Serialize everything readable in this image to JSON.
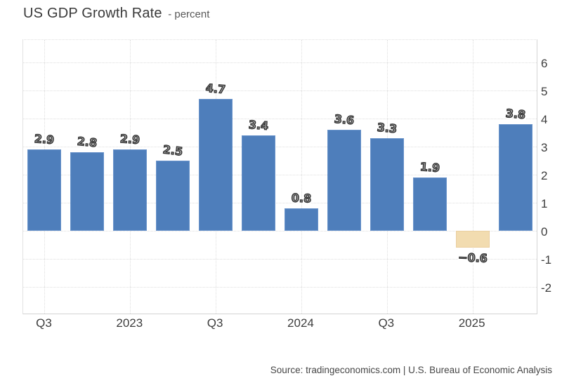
{
  "header": {
    "title": "US GDP Growth Rate",
    "subtitle": "- percent"
  },
  "source": {
    "prefix": "Source: ",
    "link_text": "tradingeconomics.com",
    "suffix": " | U.S. Bureau of Economic Analysis"
  },
  "chart_data": {
    "type": "bar",
    "title": "US GDP Growth Rate",
    "ylabel": "percent",
    "series": [
      {
        "name": "US GDP Growth Rate (percent)",
        "values": [
          2.9,
          2.8,
          2.9,
          2.5,
          4.7,
          3.4,
          0.8,
          3.6,
          3.3,
          1.9,
          -0.6,
          3.8
        ]
      }
    ],
    "bar_value_labels": [
      "2.9",
      "2.8",
      "2.9",
      "2.5",
      "4.7",
      "3.4",
      "0.8",
      "3.6",
      "3.3",
      "1.9",
      "−0.6",
      "3.8"
    ],
    "x_tick_labels": [
      "Q3",
      "2023",
      "Q3",
      "2024",
      "Q3",
      "2025"
    ],
    "x_tick_slots": [
      0,
      2,
      4,
      6,
      8,
      10
    ],
    "y_tick_labels": [
      "6",
      "5",
      "4",
      "3",
      "2",
      "1",
      "0",
      "-1",
      "-2"
    ],
    "y_tick_values": [
      6,
      5,
      4,
      3,
      2,
      1,
      0,
      -1,
      -2
    ],
    "ylim": [
      -2.95,
      6.8
    ],
    "grid": true,
    "legend": "none",
    "y_axis_position": "right",
    "colors": {
      "positive_bar": "#4e7ebb",
      "positive_bar_border": "#6a94cb",
      "negative_bar": "#f2dcb0",
      "negative_bar_border": "#eacf9f",
      "grid": "#dedede",
      "axis_text": "#3d3d3d"
    }
  }
}
